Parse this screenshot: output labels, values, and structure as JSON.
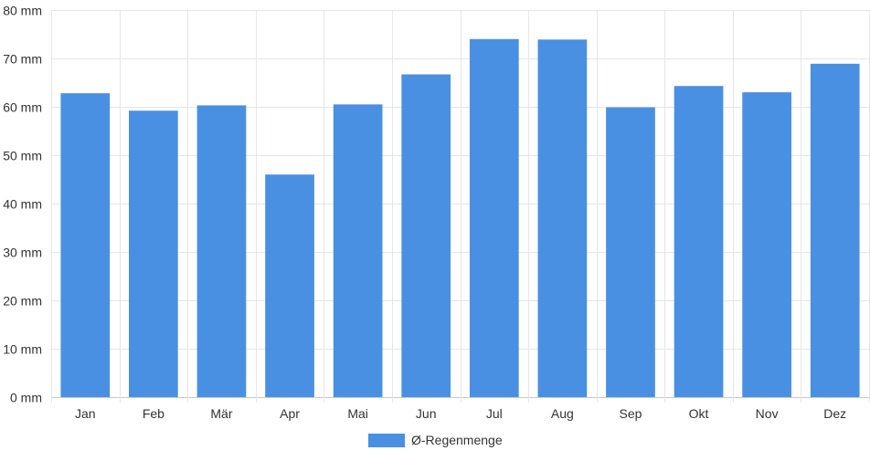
{
  "chart_data": {
    "type": "bar",
    "categories": [
      "Jan",
      "Feb",
      "Mär",
      "Apr",
      "Mai",
      "Jun",
      "Jul",
      "Aug",
      "Sep",
      "Okt",
      "Nov",
      "Dez"
    ],
    "series": [
      {
        "name": "Ø-Regenmenge",
        "values": [
          62.8,
          59.2,
          60.3,
          46.0,
          60.5,
          66.7,
          74.0,
          73.9,
          59.9,
          64.3,
          63.0,
          68.9
        ],
        "color": "#4a90e2"
      }
    ],
    "unit": "mm",
    "ylim": [
      0,
      80
    ],
    "yticks": [
      0,
      10,
      20,
      30,
      40,
      50,
      60,
      70,
      80
    ],
    "ytick_labels": [
      "0 mm",
      "10 mm",
      "20 mm",
      "30 mm",
      "40 mm",
      "50 mm",
      "60 mm",
      "70 mm",
      "80 mm"
    ],
    "grid": true,
    "legend_position": "bottom"
  }
}
